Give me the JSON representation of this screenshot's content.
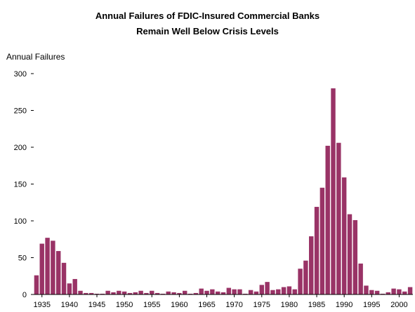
{
  "chart_data": {
    "type": "bar",
    "title": "Annual Failures of FDIC-Insured Commercial Banks",
    "subtitle": "Remain Well Below Crisis Levels",
    "ylabel": "Annual Failures",
    "xlabel": "",
    "ylim": [
      0,
      300
    ],
    "yticks": [
      0,
      50,
      100,
      150,
      200,
      250,
      300
    ],
    "xticks": [
      1935,
      1940,
      1945,
      1950,
      1955,
      1960,
      1965,
      1970,
      1975,
      1980,
      1985,
      1990,
      1995,
      2000
    ],
    "bar_color": "#993366",
    "grid": false,
    "x": [
      1934,
      1935,
      1936,
      1937,
      1938,
      1939,
      1940,
      1941,
      1942,
      1943,
      1944,
      1945,
      1946,
      1947,
      1948,
      1949,
      1950,
      1951,
      1952,
      1953,
      1954,
      1955,
      1956,
      1957,
      1958,
      1959,
      1960,
      1961,
      1962,
      1963,
      1964,
      1965,
      1966,
      1967,
      1968,
      1969,
      1970,
      1971,
      1972,
      1973,
      1974,
      1975,
      1976,
      1977,
      1978,
      1979,
      1980,
      1981,
      1982,
      1983,
      1984,
      1985,
      1986,
      1987,
      1988,
      1989,
      1990,
      1991,
      1992,
      1993,
      1994,
      1995,
      1996,
      1997,
      1998,
      1999,
      2000,
      2001,
      2002
    ],
    "values": [
      26,
      69,
      77,
      73,
      59,
      43,
      15,
      21,
      5,
      2,
      2,
      1,
      1,
      5,
      3,
      5,
      4,
      2,
      3,
      5,
      2,
      5,
      2,
      1,
      4,
      3,
      2,
      5,
      1,
      2,
      8,
      5,
      7,
      4,
      3,
      9,
      7,
      7,
      1,
      6,
      4,
      13,
      17,
      6,
      7,
      10,
      11,
      7,
      35,
      46,
      79,
      119,
      145,
      202,
      280,
      206,
      159,
      109,
      101,
      42,
      12,
      6,
      5,
      1,
      3,
      8,
      7,
      4,
      10
    ]
  }
}
